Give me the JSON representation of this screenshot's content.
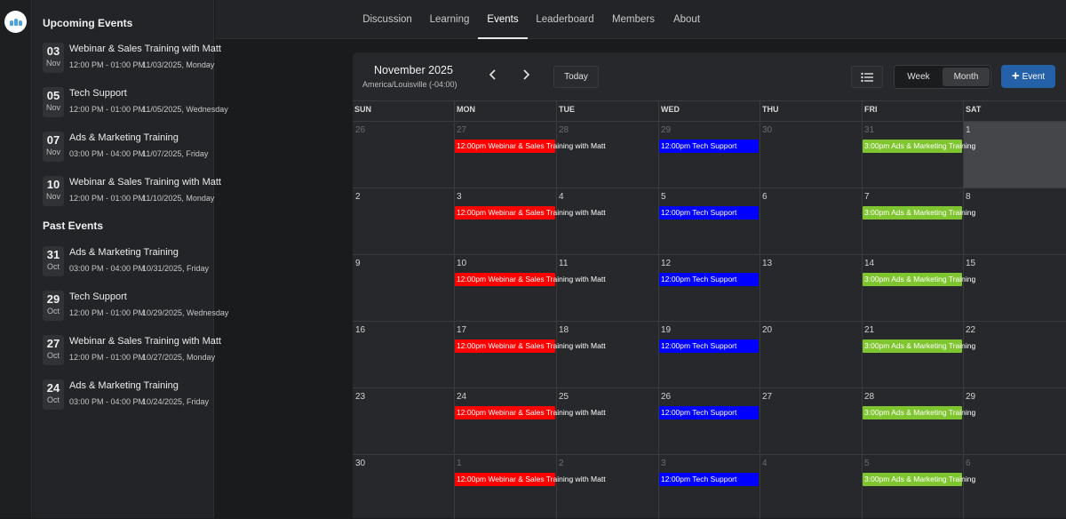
{
  "nav": {
    "tabs": [
      {
        "label": "Discussion"
      },
      {
        "label": "Learning"
      },
      {
        "label": "Events",
        "active": true
      },
      {
        "label": "Leaderboard"
      },
      {
        "label": "Members"
      },
      {
        "label": "About"
      }
    ]
  },
  "sidebar": {
    "upcoming_heading": "Upcoming Events",
    "past_heading": "Past Events",
    "upcoming": [
      {
        "day": "03",
        "month": "Nov",
        "title": "Webinar & Sales Training with Matt",
        "time": "12:00 PM - 01:00 PM",
        "date": "11/03/2025, Monday"
      },
      {
        "day": "05",
        "month": "Nov",
        "title": "Tech Support",
        "time": "12:00 PM - 01:00 PM",
        "date": "11/05/2025, Wednesday"
      },
      {
        "day": "07",
        "month": "Nov",
        "title": "Ads & Marketing Training",
        "time": "03:00 PM - 04:00 PM",
        "date": "11/07/2025, Friday"
      },
      {
        "day": "10",
        "month": "Nov",
        "title": "Webinar & Sales Training with Matt",
        "time": "12:00 PM - 01:00 PM",
        "date": "11/10/2025, Monday"
      }
    ],
    "past": [
      {
        "day": "31",
        "month": "Oct",
        "title": "Ads & Marketing Training",
        "time": "03:00 PM - 04:00 PM",
        "date": "10/31/2025, Friday"
      },
      {
        "day": "29",
        "month": "Oct",
        "title": "Tech Support",
        "time": "12:00 PM - 01:00 PM",
        "date": "10/29/2025, Wednesday"
      },
      {
        "day": "27",
        "month": "Oct",
        "title": "Webinar & Sales Training with Matt",
        "time": "12:00 PM - 01:00 PM",
        "date": "10/27/2025, Monday"
      },
      {
        "day": "24",
        "month": "Oct",
        "title": "Ads & Marketing Training",
        "time": "03:00 PM - 04:00 PM",
        "date": "10/24/2025, Friday"
      }
    ]
  },
  "calendar": {
    "title": "November 2025",
    "timezone": "America/Louisville (-04:00)",
    "today_label": "Today",
    "view_week": "Week",
    "view_month": "Month",
    "selected_view": "Month",
    "add_event_label": "Event",
    "weekdays": [
      "SUN",
      "MON",
      "TUE",
      "WED",
      "THU",
      "FRI",
      "SAT"
    ],
    "highlighted_day": "1",
    "weeks": [
      [
        {
          "d": "26",
          "o": true
        },
        {
          "d": "27",
          "o": true
        },
        {
          "d": "28",
          "o": true
        },
        {
          "d": "29",
          "o": true
        },
        {
          "d": "30",
          "o": true
        },
        {
          "d": "31",
          "o": true
        },
        {
          "d": "1",
          "o": false
        }
      ],
      [
        {
          "d": "2",
          "o": false
        },
        {
          "d": "3",
          "o": false
        },
        {
          "d": "4",
          "o": false
        },
        {
          "d": "5",
          "o": false
        },
        {
          "d": "6",
          "o": false
        },
        {
          "d": "7",
          "o": false
        },
        {
          "d": "8",
          "o": false
        }
      ],
      [
        {
          "d": "9",
          "o": false
        },
        {
          "d": "10",
          "o": false
        },
        {
          "d": "11",
          "o": false
        },
        {
          "d": "12",
          "o": false
        },
        {
          "d": "13",
          "o": false
        },
        {
          "d": "14",
          "o": false
        },
        {
          "d": "15",
          "o": false
        }
      ],
      [
        {
          "d": "16",
          "o": false
        },
        {
          "d": "17",
          "o": false
        },
        {
          "d": "18",
          "o": false
        },
        {
          "d": "19",
          "o": false
        },
        {
          "d": "20",
          "o": false
        },
        {
          "d": "21",
          "o": false
        },
        {
          "d": "22",
          "o": false
        }
      ],
      [
        {
          "d": "23",
          "o": false
        },
        {
          "d": "24",
          "o": false
        },
        {
          "d": "25",
          "o": false
        },
        {
          "d": "26",
          "o": false
        },
        {
          "d": "27",
          "o": false
        },
        {
          "d": "28",
          "o": false
        },
        {
          "d": "29",
          "o": false
        }
      ],
      [
        {
          "d": "30",
          "o": false
        },
        {
          "d": "1",
          "o": true
        },
        {
          "d": "2",
          "o": true
        },
        {
          "d": "3",
          "o": true
        },
        {
          "d": "4",
          "o": true
        },
        {
          "d": "5",
          "o": true
        },
        {
          "d": "6",
          "o": true
        }
      ]
    ],
    "recurring_events": [
      {
        "weekday": 1,
        "label": "12:00pm Webinar & Sales Training with Matt",
        "color": "#ff0000",
        "text_color": "#ffffff"
      },
      {
        "weekday": 3,
        "label": "12:00pm Tech Support",
        "color": "#0000ff",
        "text_color": "#ffffff"
      },
      {
        "weekday": 5,
        "label": "3:00pm Ads & Marketing Training",
        "color": "#7fc52f",
        "text_color": "#ffffff"
      }
    ]
  },
  "colors": {
    "accent": "#2461a8",
    "background": "#1a1b1d",
    "panel": "#27282b"
  }
}
